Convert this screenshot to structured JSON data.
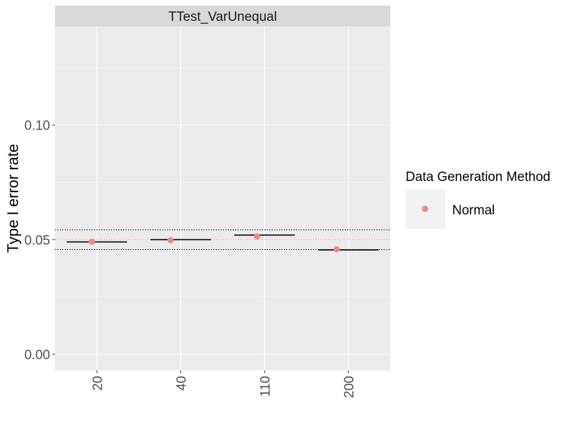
{
  "chart_data": {
    "type": "scatter",
    "facet_title": "TTest_VarUnequal",
    "xlabel": "",
    "ylabel": "Type I error rate",
    "categories": [
      "20",
      "40",
      "110",
      "200"
    ],
    "ylim": [
      -0.007,
      0.143
    ],
    "y_ticks": [
      0.0,
      0.05,
      0.1
    ],
    "y_tick_labels": [
      "0.00",
      "0.05",
      "0.10"
    ],
    "reference_lines": {
      "nominal": 0.05,
      "lower_bound": 0.0457,
      "upper_bound": 0.0543
    },
    "series": [
      {
        "name": "Normal",
        "color": "#ee8a85",
        "points": [
          {
            "category": "20",
            "value": 0.0491,
            "offset": -0.06
          },
          {
            "category": "40",
            "value": 0.0497,
            "offset": -0.12
          },
          {
            "category": "110",
            "value": 0.0514,
            "offset": -0.09
          },
          {
            "category": "200",
            "value": 0.0458,
            "offset": -0.14
          }
        ],
        "segments": [
          {
            "category": "20",
            "value": 0.049
          },
          {
            "category": "40",
            "value": 0.05
          },
          {
            "category": "110",
            "value": 0.052
          },
          {
            "category": "200",
            "value": 0.0455
          }
        ]
      }
    ],
    "grid": true,
    "legend_title": "Data Generation Method",
    "legend_position": "right",
    "colors": {
      "panel_background": "#ebebeb",
      "strip_background": "#d9d9d9",
      "grid": "#ffffff",
      "nominal_line": "#f8766d",
      "bound_line": "#000000",
      "segment": "#000000"
    }
  }
}
